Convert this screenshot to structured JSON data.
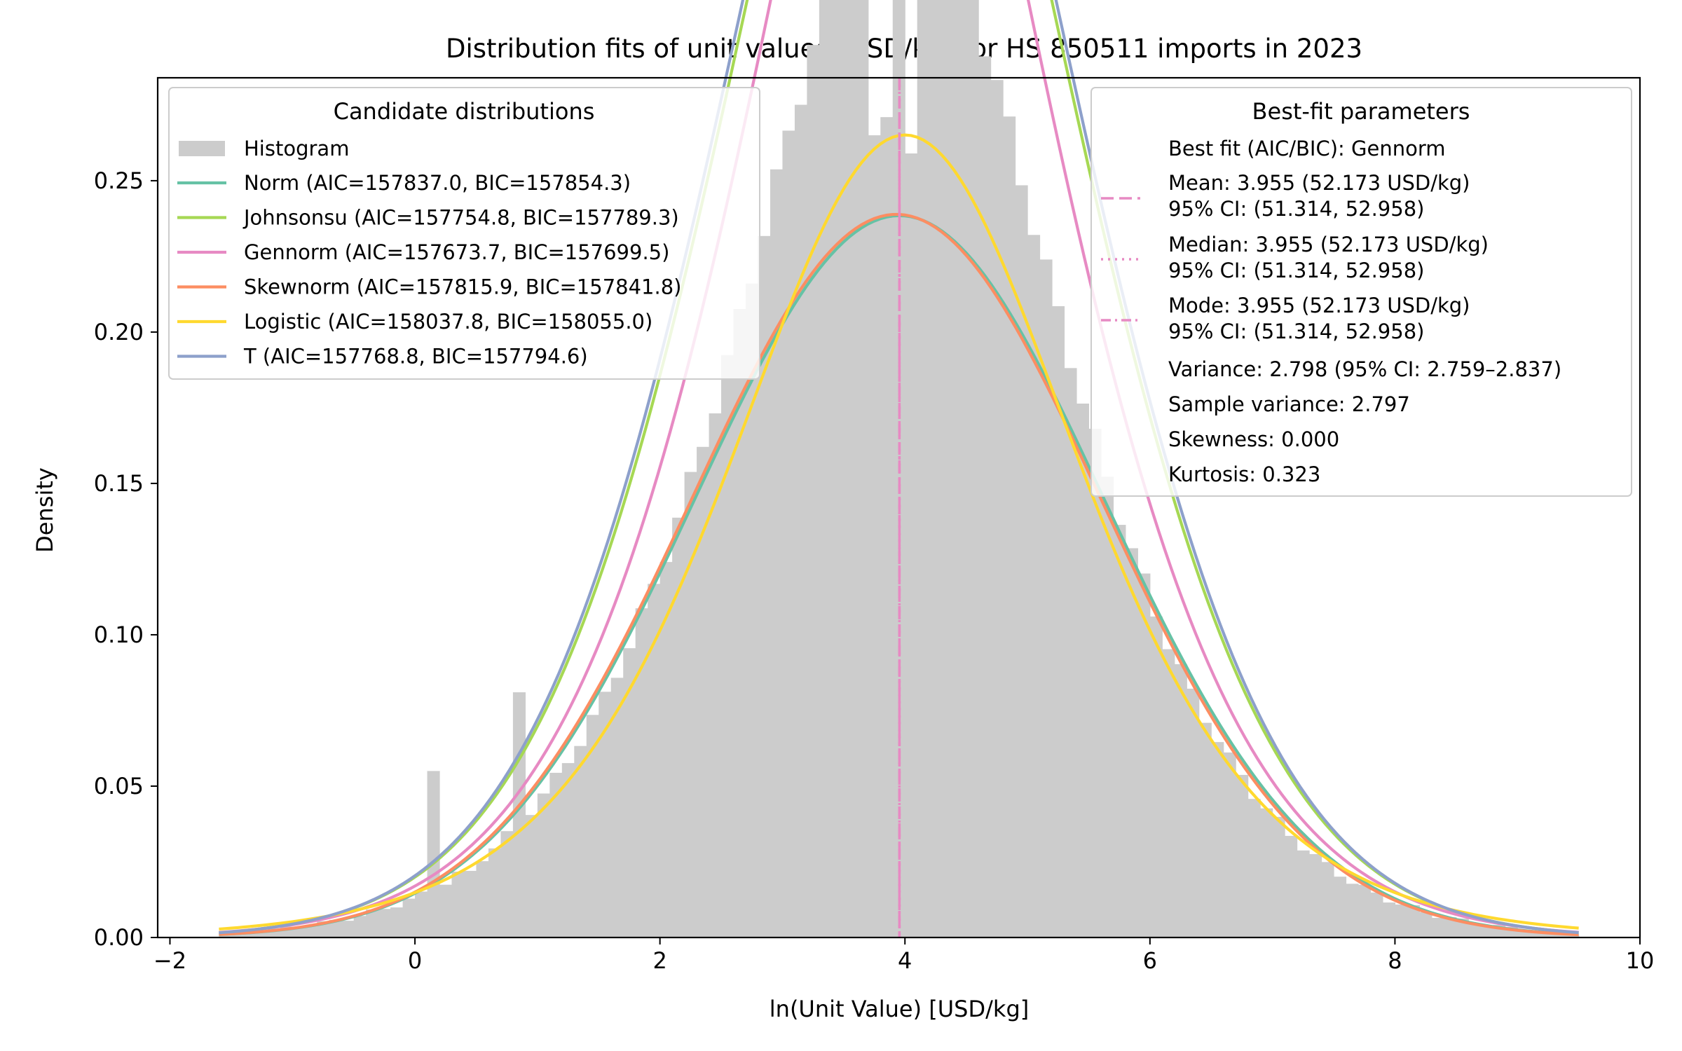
{
  "chart_data": {
    "type": "histogram_with_fitted_pdfs",
    "title": "Distribution fits of unit values (USD/kg) for HS 850511 imports in 2023",
    "xlabel": "ln(Unit Value) [USD/kg]",
    "ylabel": "Density",
    "xlim": [
      -2.1,
      10.0
    ],
    "ylim": [
      0.0,
      0.284
    ],
    "x_ticks": [
      -2,
      0,
      2,
      4,
      6,
      8,
      10
    ],
    "x_tick_labels": [
      "−2",
      "0",
      "2",
      "4",
      "6",
      "8",
      "10"
    ],
    "y_ticks": [
      0.0,
      0.05,
      0.1,
      0.15,
      0.2,
      0.25
    ],
    "y_tick_labels": [
      "0.00",
      "0.05",
      "0.10",
      "0.15",
      "0.20",
      "0.25"
    ],
    "histogram": {
      "label": "Histogram",
      "color": "#cccccc",
      "bin_start": -1.6,
      "bin_width": 0.1
    },
    "fit_range": [
      -1.6,
      9.5
    ],
    "best_fit_mode_x": 3.955,
    "series": [
      {
        "name": "Norm",
        "label": "Norm (AIC=157837.0, BIC=157854.3)",
        "color": "#66c2a5",
        "dist": "norm",
        "params": {
          "mu": 3.955,
          "sigma": 1.673
        }
      },
      {
        "name": "Johnsonsu",
        "label": "Johnsonsu (AIC=157754.8, BIC=157789.3)",
        "color": "#a6d854",
        "dist": "gennorm",
        "params": {
          "mu": 3.955,
          "alpha": 2.02,
          "beta": 1.72
        }
      },
      {
        "name": "Gennorm",
        "label": "Gennorm (AIC=157673.7, BIC=157699.5)",
        "color": "#e78ac3",
        "dist": "gennorm",
        "params": {
          "mu": 3.955,
          "alpha": 1.82,
          "beta": 1.55
        }
      },
      {
        "name": "Skewnorm",
        "label": "Skewnorm (AIC=157815.9, BIC=157841.8)",
        "color": "#fc8d62",
        "dist": "norm",
        "params": {
          "mu": 3.93,
          "sigma": 1.67
        }
      },
      {
        "name": "Logistic",
        "label": "Logistic (AIC=158037.8, BIC=158055.0)",
        "color": "#ffd92f",
        "dist": "logistic",
        "params": {
          "mu": 4.0,
          "s": 0.943
        }
      },
      {
        "name": "T",
        "label": "T (AIC=157768.8, BIC=157794.6)",
        "color": "#8da0cb",
        "dist": "gennorm",
        "params": {
          "mu": 3.955,
          "alpha": 2.05,
          "beta": 1.75
        }
      }
    ],
    "legend_left": {
      "title": "Candidate distributions",
      "position": "upper-left"
    },
    "legend_right": {
      "title": "Best-fit parameters",
      "position": "upper-right",
      "line_color": "#e78ac3",
      "best_fit": "Best fit (AIC/BIC): Gennorm",
      "mean": "Mean: 3.955 (52.173 USD/kg)",
      "mean_ci": "95% CI: (51.314, 52.958)",
      "median": "Median: 3.955 (52.173 USD/kg)",
      "median_ci": "95% CI: (51.314, 52.958)",
      "mode": "Mode: 3.955 (52.173 USD/kg)",
      "mode_ci": "95% CI: (51.314, 52.958)",
      "variance": "Variance: 2.798 (95% CI: 2.759–2.837)",
      "sample_variance": "Sample variance: 2.797",
      "skewness": "Skewness: 0.000",
      "kurtosis": "Kurtosis: 0.323"
    }
  }
}
